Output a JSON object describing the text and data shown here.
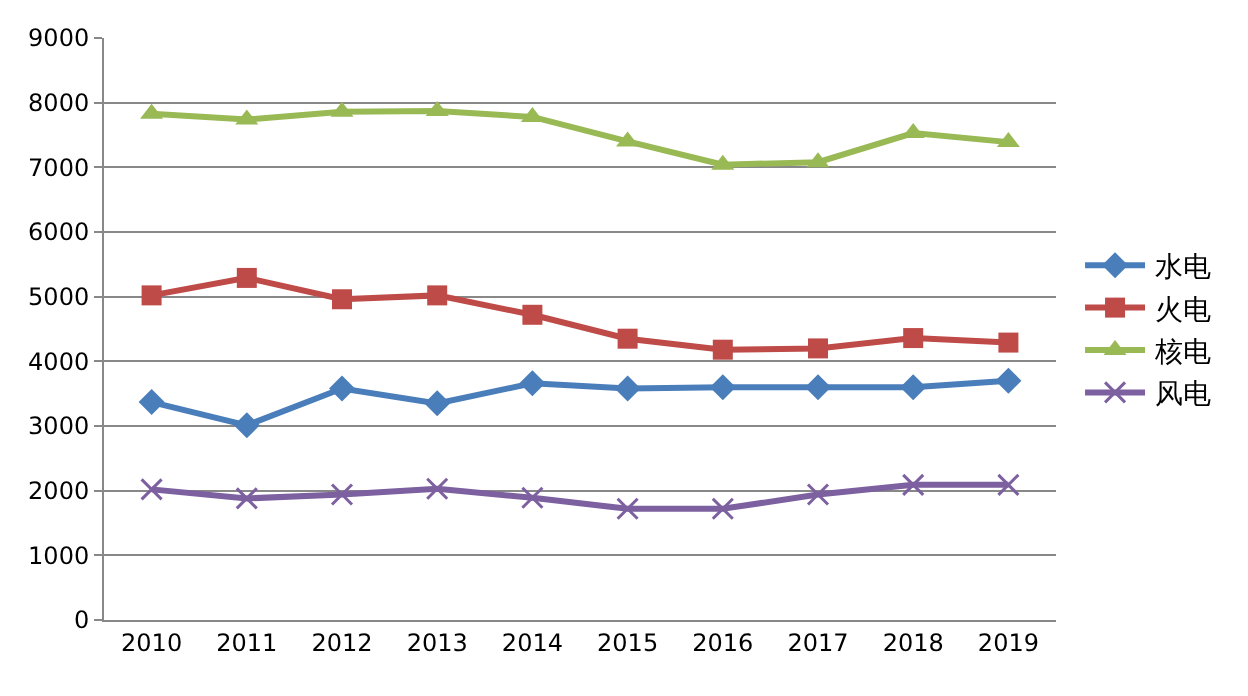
{
  "chart_data": {
    "type": "line",
    "categories": [
      "2010",
      "2011",
      "2012",
      "2013",
      "2014",
      "2015",
      "2016",
      "2017",
      "2018",
      "2019"
    ],
    "series": [
      {
        "name": "水电",
        "color": "#4a7ebb",
        "marker": "diamond",
        "values": [
          3370,
          3010,
          3580,
          3350,
          3660,
          3580,
          3600,
          3600,
          3600,
          3700
        ]
      },
      {
        "name": "火电",
        "color": "#be4b48",
        "marker": "square",
        "values": [
          5020,
          5290,
          4960,
          5020,
          4720,
          4350,
          4180,
          4200,
          4360,
          4290
        ]
      },
      {
        "name": "核电",
        "color": "#98b954",
        "marker": "triangle",
        "values": [
          7830,
          7740,
          7860,
          7870,
          7780,
          7400,
          7040,
          7080,
          7530,
          7390
        ]
      },
      {
        "name": "风电",
        "color": "#7d60a0",
        "marker": "cross",
        "values": [
          2020,
          1880,
          1940,
          2030,
          1890,
          1720,
          1720,
          1940,
          2090,
          2090
        ]
      }
    ],
    "ylim": [
      0,
      9000
    ],
    "yticks": [
      0,
      1000,
      2000,
      3000,
      4000,
      5000,
      6000,
      7000,
      8000,
      9000
    ],
    "grid": "y",
    "legend": "right",
    "line_style": "solid"
  }
}
